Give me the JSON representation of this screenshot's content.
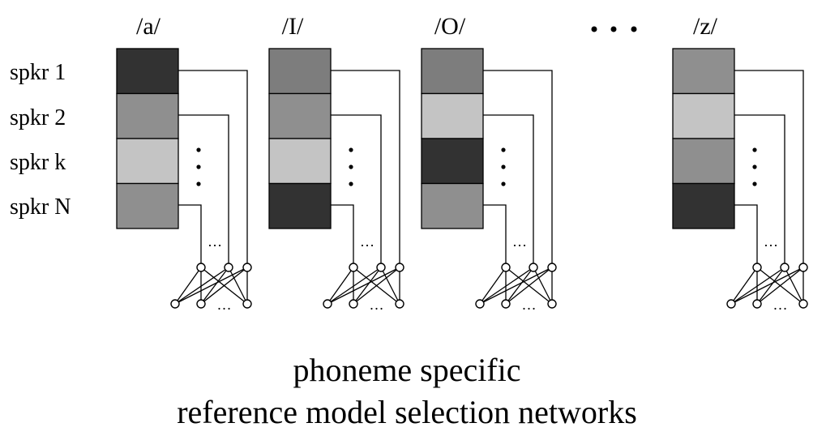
{
  "speakers": [
    "spkr 1",
    "spkr 2",
    "spkr k",
    "spkr N"
  ],
  "phonemes": [
    {
      "label": "/a/",
      "shades": [
        "#323232",
        "#8f8f8f",
        "#c4c4c4",
        "#8f8f8f"
      ]
    },
    {
      "label": "/I/",
      "shades": [
        "#7d7d7d",
        "#8f8f8f",
        "#c4c4c4",
        "#323232"
      ]
    },
    {
      "label": "/O/",
      "shades": [
        "#7d7d7d",
        "#c4c4c4",
        "#323232",
        "#8f8f8f"
      ]
    },
    {
      "label": "/z/",
      "shades": [
        "#8f8f8f",
        "#c4c4c4",
        "#8f8f8f",
        "#323232"
      ]
    }
  ],
  "ellipsis_small": "…",
  "caption": {
    "line1": "phoneme specific",
    "line2": "reference model selection networks"
  }
}
